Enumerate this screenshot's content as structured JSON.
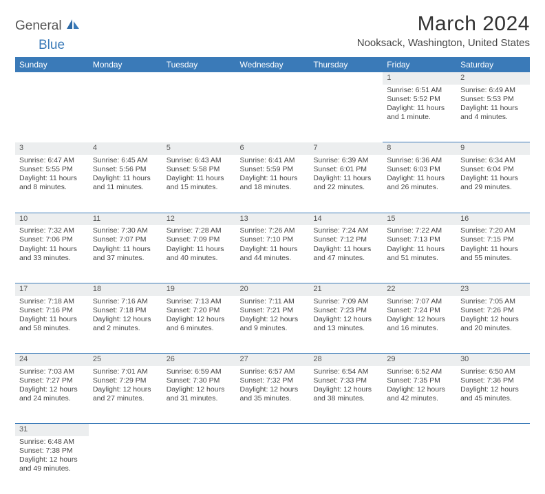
{
  "logo": {
    "text1": "General",
    "text2": "Blue"
  },
  "title": "March 2024",
  "location": "Nooksack, Washington, United States",
  "colors": {
    "header_bg": "#3a7ab8",
    "header_text": "#ffffff",
    "daynum_bg": "#eceeef",
    "body_text": "#444444",
    "border": "#3a7ab8",
    "background": "#ffffff"
  },
  "fonts": {
    "title_size": 30,
    "location_size": 15,
    "th_size": 12,
    "cell_size": 10.5
  },
  "columns": [
    "Sunday",
    "Monday",
    "Tuesday",
    "Wednesday",
    "Thursday",
    "Friday",
    "Saturday"
  ],
  "weeks": [
    [
      null,
      null,
      null,
      null,
      null,
      {
        "n": "1",
        "r": "Sunrise: 6:51 AM",
        "s": "Sunset: 5:52 PM",
        "d": "Daylight: 11 hours and 1 minute."
      },
      {
        "n": "2",
        "r": "Sunrise: 6:49 AM",
        "s": "Sunset: 5:53 PM",
        "d": "Daylight: 11 hours and 4 minutes."
      }
    ],
    [
      {
        "n": "3",
        "r": "Sunrise: 6:47 AM",
        "s": "Sunset: 5:55 PM",
        "d": "Daylight: 11 hours and 8 minutes."
      },
      {
        "n": "4",
        "r": "Sunrise: 6:45 AM",
        "s": "Sunset: 5:56 PM",
        "d": "Daylight: 11 hours and 11 minutes."
      },
      {
        "n": "5",
        "r": "Sunrise: 6:43 AM",
        "s": "Sunset: 5:58 PM",
        "d": "Daylight: 11 hours and 15 minutes."
      },
      {
        "n": "6",
        "r": "Sunrise: 6:41 AM",
        "s": "Sunset: 5:59 PM",
        "d": "Daylight: 11 hours and 18 minutes."
      },
      {
        "n": "7",
        "r": "Sunrise: 6:39 AM",
        "s": "Sunset: 6:01 PM",
        "d": "Daylight: 11 hours and 22 minutes."
      },
      {
        "n": "8",
        "r": "Sunrise: 6:36 AM",
        "s": "Sunset: 6:03 PM",
        "d": "Daylight: 11 hours and 26 minutes."
      },
      {
        "n": "9",
        "r": "Sunrise: 6:34 AM",
        "s": "Sunset: 6:04 PM",
        "d": "Daylight: 11 hours and 29 minutes."
      }
    ],
    [
      {
        "n": "10",
        "r": "Sunrise: 7:32 AM",
        "s": "Sunset: 7:06 PM",
        "d": "Daylight: 11 hours and 33 minutes."
      },
      {
        "n": "11",
        "r": "Sunrise: 7:30 AM",
        "s": "Sunset: 7:07 PM",
        "d": "Daylight: 11 hours and 37 minutes."
      },
      {
        "n": "12",
        "r": "Sunrise: 7:28 AM",
        "s": "Sunset: 7:09 PM",
        "d": "Daylight: 11 hours and 40 minutes."
      },
      {
        "n": "13",
        "r": "Sunrise: 7:26 AM",
        "s": "Sunset: 7:10 PM",
        "d": "Daylight: 11 hours and 44 minutes."
      },
      {
        "n": "14",
        "r": "Sunrise: 7:24 AM",
        "s": "Sunset: 7:12 PM",
        "d": "Daylight: 11 hours and 47 minutes."
      },
      {
        "n": "15",
        "r": "Sunrise: 7:22 AM",
        "s": "Sunset: 7:13 PM",
        "d": "Daylight: 11 hours and 51 minutes."
      },
      {
        "n": "16",
        "r": "Sunrise: 7:20 AM",
        "s": "Sunset: 7:15 PM",
        "d": "Daylight: 11 hours and 55 minutes."
      }
    ],
    [
      {
        "n": "17",
        "r": "Sunrise: 7:18 AM",
        "s": "Sunset: 7:16 PM",
        "d": "Daylight: 11 hours and 58 minutes."
      },
      {
        "n": "18",
        "r": "Sunrise: 7:16 AM",
        "s": "Sunset: 7:18 PM",
        "d": "Daylight: 12 hours and 2 minutes."
      },
      {
        "n": "19",
        "r": "Sunrise: 7:13 AM",
        "s": "Sunset: 7:20 PM",
        "d": "Daylight: 12 hours and 6 minutes."
      },
      {
        "n": "20",
        "r": "Sunrise: 7:11 AM",
        "s": "Sunset: 7:21 PM",
        "d": "Daylight: 12 hours and 9 minutes."
      },
      {
        "n": "21",
        "r": "Sunrise: 7:09 AM",
        "s": "Sunset: 7:23 PM",
        "d": "Daylight: 12 hours and 13 minutes."
      },
      {
        "n": "22",
        "r": "Sunrise: 7:07 AM",
        "s": "Sunset: 7:24 PM",
        "d": "Daylight: 12 hours and 16 minutes."
      },
      {
        "n": "23",
        "r": "Sunrise: 7:05 AM",
        "s": "Sunset: 7:26 PM",
        "d": "Daylight: 12 hours and 20 minutes."
      }
    ],
    [
      {
        "n": "24",
        "r": "Sunrise: 7:03 AM",
        "s": "Sunset: 7:27 PM",
        "d": "Daylight: 12 hours and 24 minutes."
      },
      {
        "n": "25",
        "r": "Sunrise: 7:01 AM",
        "s": "Sunset: 7:29 PM",
        "d": "Daylight: 12 hours and 27 minutes."
      },
      {
        "n": "26",
        "r": "Sunrise: 6:59 AM",
        "s": "Sunset: 7:30 PM",
        "d": "Daylight: 12 hours and 31 minutes."
      },
      {
        "n": "27",
        "r": "Sunrise: 6:57 AM",
        "s": "Sunset: 7:32 PM",
        "d": "Daylight: 12 hours and 35 minutes."
      },
      {
        "n": "28",
        "r": "Sunrise: 6:54 AM",
        "s": "Sunset: 7:33 PM",
        "d": "Daylight: 12 hours and 38 minutes."
      },
      {
        "n": "29",
        "r": "Sunrise: 6:52 AM",
        "s": "Sunset: 7:35 PM",
        "d": "Daylight: 12 hours and 42 minutes."
      },
      {
        "n": "30",
        "r": "Sunrise: 6:50 AM",
        "s": "Sunset: 7:36 PM",
        "d": "Daylight: 12 hours and 45 minutes."
      }
    ],
    [
      {
        "n": "31",
        "r": "Sunrise: 6:48 AM",
        "s": "Sunset: 7:38 PM",
        "d": "Daylight: 12 hours and 49 minutes."
      },
      null,
      null,
      null,
      null,
      null,
      null
    ]
  ]
}
